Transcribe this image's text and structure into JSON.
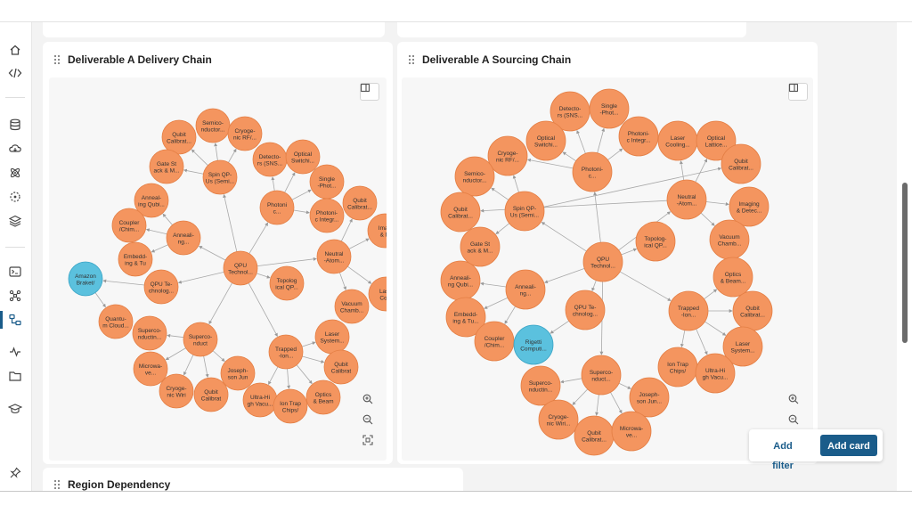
{
  "sidebar": {
    "icons": [
      "home-icon",
      "code-icon",
      "database-icon",
      "download-cloud-icon",
      "atom-icon",
      "scan-icon",
      "layers-icon",
      "terminal-icon",
      "network-graph-icon",
      "graph-view-icon",
      "activity-icon",
      "folder-icon",
      "learning-icon",
      "pin-icon"
    ],
    "active": "graph-view-icon"
  },
  "cards": {
    "delivery": {
      "title": "Deliverable A Delivery Chain"
    },
    "sourcing": {
      "title": "Deliverable A Sourcing Chain"
    },
    "region": {
      "title": "Region Dependency"
    }
  },
  "actions": {
    "add_filter": "Add filter",
    "add_card": "Add card"
  },
  "colors": {
    "node": "#f4955f",
    "node_stroke": "#e47f45",
    "highlight": "#5bc1de",
    "highlight_stroke": "#3aa5c6",
    "accent": "#1a5c8a"
  },
  "graphs": {
    "delivery": {
      "nodes": [
        {
          "id": "d_semi",
          "label": [
            "Semico-",
            "nductor..."
          ]
        },
        {
          "id": "d_qcal1",
          "label": [
            "Qubit",
            "Calibrat..."
          ]
        },
        {
          "id": "d_cryo",
          "label": [
            "Cryoge-",
            "nic RF/..."
          ]
        },
        {
          "id": "d_gate",
          "label": [
            "Gate St",
            "ack & M..."
          ]
        },
        {
          "id": "d_spin",
          "label": [
            "Spin QP-",
            "Us (Semi..."
          ]
        },
        {
          "id": "d_det",
          "label": [
            "Detecto-",
            "rs (SNS..."
          ]
        },
        {
          "id": "d_osw",
          "label": [
            "Optical",
            "Switchi..."
          ]
        },
        {
          "id": "d_ann1",
          "label": [
            "Anneal-",
            "ing Qubi..."
          ]
        },
        {
          "id": "d_single",
          "label": [
            "Single",
            "-Phot..."
          ]
        },
        {
          "id": "d_photc",
          "label": [
            "Photoni",
            "c..."
          ]
        },
        {
          "id": "d_qcal2",
          "label": [
            "Qubit",
            "Calibrat..."
          ]
        },
        {
          "id": "d_phint",
          "label": [
            "Photoni-",
            "c Integr..."
          ]
        },
        {
          "id": "d_coup",
          "label": [
            "Coupler",
            "/Chim..."
          ]
        },
        {
          "id": "d_ann2",
          "label": [
            "Anneali-",
            "ng..."
          ]
        },
        {
          "id": "d_img",
          "label": [
            "Imag",
            "& D"
          ]
        },
        {
          "id": "d_emb",
          "label": [
            "Embedd-",
            "ing & Tu"
          ]
        },
        {
          "id": "d_neut",
          "label": [
            "Neutral",
            "-Atom..."
          ]
        },
        {
          "id": "d_qpu",
          "label": [
            "QPU",
            "Technol..."
          ]
        },
        {
          "id": "d_amazon",
          "label": [
            "Amazon",
            "Braket/"
          ],
          "highlight": true
        },
        {
          "id": "d_qpute",
          "label": [
            "QPU Te-",
            "chnolog..."
          ]
        },
        {
          "id": "d_topo",
          "label": [
            "Topolog",
            "ical QP..."
          ]
        },
        {
          "id": "d_laser1",
          "label": [
            "Lase",
            "Cool"
          ]
        },
        {
          "id": "d_qcloud",
          "label": [
            "Quantu-",
            "m Cloud..."
          ]
        },
        {
          "id": "d_vac",
          "label": [
            "Vacuum",
            "Chamb..."
          ]
        },
        {
          "id": "d_sc1",
          "label": [
            "Superco-",
            "nductin..."
          ]
        },
        {
          "id": "d_sc2",
          "label": [
            "Superco-",
            "nduct"
          ]
        },
        {
          "id": "d_lasersys",
          "label": [
            "Laser",
            "System..."
          ]
        },
        {
          "id": "d_trap",
          "label": [
            "Trapped",
            "-Ion..."
          ]
        },
        {
          "id": "d_micro",
          "label": [
            "Microwa-",
            "ve..."
          ]
        },
        {
          "id": "d_qcal3",
          "label": [
            "Qubit",
            "Calibrat"
          ]
        },
        {
          "id": "d_jos",
          "label": [
            "Joseph-",
            "son Jun"
          ]
        },
        {
          "id": "d_cryo2",
          "label": [
            "Cryoge-",
            "nic Wiri"
          ]
        },
        {
          "id": "d_qcal4",
          "label": [
            "Qubit",
            "Calibrat"
          ]
        },
        {
          "id": "d_uhv",
          "label": [
            "Ultra-Hi",
            "gh Vacu..."
          ]
        },
        {
          "id": "d_optbeam",
          "label": [
            "Optics",
            "& Beam"
          ]
        },
        {
          "id": "d_iontrap",
          "label": [
            "Ion Trap",
            "Chips/"
          ]
        }
      ],
      "edges": [
        [
          "d_qpu",
          "d_spin"
        ],
        [
          "d_qpu",
          "d_photc"
        ],
        [
          "d_qpu",
          "d_neut"
        ],
        [
          "d_qpu",
          "d_ann2"
        ],
        [
          "d_qpu",
          "d_qpute"
        ],
        [
          "d_qpu",
          "d_topo"
        ],
        [
          "d_qpu",
          "d_sc2"
        ],
        [
          "d_qpu",
          "d_trap"
        ],
        [
          "d_qpute",
          "d_amazon"
        ],
        [
          "d_amazon",
          "d_qcloud"
        ],
        [
          "d_spin",
          "d_semi"
        ],
        [
          "d_spin",
          "d_qcal1"
        ],
        [
          "d_spin",
          "d_cryo"
        ],
        [
          "d_spin",
          "d_gate"
        ],
        [
          "d_photc",
          "d_det"
        ],
        [
          "d_photc",
          "d_osw"
        ],
        [
          "d_photc",
          "d_single"
        ],
        [
          "d_photc",
          "d_phint"
        ],
        [
          "d_ann2",
          "d_ann1"
        ],
        [
          "d_ann2",
          "d_coup"
        ],
        [
          "d_ann2",
          "d_emb"
        ],
        [
          "d_neut",
          "d_qcal2"
        ],
        [
          "d_neut",
          "d_img"
        ],
        [
          "d_neut",
          "d_laser1"
        ],
        [
          "d_neut",
          "d_vac"
        ],
        [
          "d_sc2",
          "d_sc1"
        ],
        [
          "d_sc2",
          "d_micro"
        ],
        [
          "d_sc2",
          "d_cryo2"
        ],
        [
          "d_sc2",
          "d_qcal4"
        ],
        [
          "d_sc2",
          "d_jos"
        ],
        [
          "d_trap",
          "d_lasersys"
        ],
        [
          "d_trap",
          "d_qcal3"
        ],
        [
          "d_trap",
          "d_optbeam"
        ],
        [
          "d_trap",
          "d_iontrap"
        ],
        [
          "d_trap",
          "d_uhv"
        ]
      ]
    },
    "sourcing": {
      "nodes": [
        {
          "id": "s_det",
          "label": [
            "Detecto-",
            "rs (SNS..."
          ]
        },
        {
          "id": "s_single",
          "label": [
            "Single",
            "-Phot..."
          ]
        },
        {
          "id": "s_osw",
          "label": [
            "Optical",
            "Switchi..."
          ]
        },
        {
          "id": "s_phint",
          "label": [
            "Photoni-",
            "c Integr..."
          ]
        },
        {
          "id": "s_laserc",
          "label": [
            "Laser",
            "Cooling..."
          ]
        },
        {
          "id": "s_optl",
          "label": [
            "Optical",
            "Lattice..."
          ]
        },
        {
          "id": "s_cryo",
          "label": [
            "Cryoge-",
            "nic RF/..."
          ]
        },
        {
          "id": "s_photc",
          "label": [
            "Photoni-",
            "c..."
          ]
        },
        {
          "id": "s_qcal1",
          "label": [
            "Qubit",
            "Calibrat..."
          ]
        },
        {
          "id": "s_semi",
          "label": [
            "Semico-",
            "nductor..."
          ]
        },
        {
          "id": "s_neut",
          "label": [
            "Neutral",
            "-Atom..."
          ]
        },
        {
          "id": "s_img",
          "label": [
            "Imaging",
            "& Detec..."
          ]
        },
        {
          "id": "s_qcal2",
          "label": [
            "Qubit",
            "Calibrat..."
          ]
        },
        {
          "id": "s_spin",
          "label": [
            "Spin QP-",
            "Us (Semi..."
          ]
        },
        {
          "id": "s_topo",
          "label": [
            "Topolog-",
            "ical QP..."
          ]
        },
        {
          "id": "s_vac",
          "label": [
            "Vacuum",
            "Chamb..."
          ]
        },
        {
          "id": "s_gate",
          "label": [
            "Gate St",
            "ack & M..."
          ]
        },
        {
          "id": "s_qpu",
          "label": [
            "QPU",
            "Technol..."
          ]
        },
        {
          "id": "s_ann1",
          "label": [
            "Anneali-",
            "ng Qubi..."
          ]
        },
        {
          "id": "s_ann2",
          "label": [
            "Anneali-",
            "ng..."
          ]
        },
        {
          "id": "s_optbeam",
          "label": [
            "Optics",
            "& Beam..."
          ]
        },
        {
          "id": "s_qcal3",
          "label": [
            "Qubit",
            "Calibrat..."
          ]
        },
        {
          "id": "s_emb",
          "label": [
            "Embedd-",
            "ing & Tu..."
          ]
        },
        {
          "id": "s_qpute",
          "label": [
            "QPU Te-",
            "chnolog..."
          ]
        },
        {
          "id": "s_trap",
          "label": [
            "Trapped",
            "-Ion..."
          ]
        },
        {
          "id": "s_coup",
          "label": [
            "Coupler",
            "/Chim..."
          ]
        },
        {
          "id": "s_rigetti",
          "label": [
            "Rigetti",
            "Computi..."
          ],
          "highlight": true
        },
        {
          "id": "s_lasersys",
          "label": [
            "Laser",
            "System..."
          ]
        },
        {
          "id": "s_iontrap",
          "label": [
            "Ion Trap",
            "Chips/"
          ]
        },
        {
          "id": "s_uhv",
          "label": [
            "Ultra-Hi",
            "gh Vacu..."
          ]
        },
        {
          "id": "s_sc2",
          "label": [
            "Superco-",
            "nduct..."
          ]
        },
        {
          "id": "s_sc1",
          "label": [
            "Superco-",
            "nductin..."
          ]
        },
        {
          "id": "s_jos",
          "label": [
            "Joseph-",
            "son Jun..."
          ]
        },
        {
          "id": "s_cryo2",
          "label": [
            "Cryoge-",
            "nic Wiri..."
          ]
        },
        {
          "id": "s_qcal4",
          "label": [
            "Qubit",
            "Calibrat..."
          ]
        },
        {
          "id": "s_micro",
          "label": [
            "Microwa-",
            "ve..."
          ]
        }
      ],
      "edges": [
        [
          "s_qpu",
          "s_photc"
        ],
        [
          "s_qpu",
          "s_spin"
        ],
        [
          "s_qpu",
          "s_topo"
        ],
        [
          "s_qpu",
          "s_neut"
        ],
        [
          "s_qpu",
          "s_ann2"
        ],
        [
          "s_qpu",
          "s_qpute"
        ],
        [
          "s_qpu",
          "s_trap"
        ],
        [
          "s_qpu",
          "s_sc2"
        ],
        [
          "s_qpute",
          "s_rigetti"
        ],
        [
          "s_photc",
          "s_det"
        ],
        [
          "s_photc",
          "s_single"
        ],
        [
          "s_photc",
          "s_osw"
        ],
        [
          "s_photc",
          "s_phint"
        ],
        [
          "s_photc",
          "s_cryo"
        ],
        [
          "s_spin",
          "s_semi"
        ],
        [
          "s_spin",
          "s_qcal1"
        ],
        [
          "s_spin",
          "s_gate"
        ],
        [
          "s_spin",
          "s_cryo"
        ],
        [
          "s_neut",
          "s_laserc"
        ],
        [
          "s_neut",
          "s_optl"
        ],
        [
          "s_neut",
          "s_img"
        ],
        [
          "s_neut",
          "s_qcal2"
        ],
        [
          "s_neut",
          "s_vac"
        ],
        [
          "s_ann2",
          "s_ann1"
        ],
        [
          "s_ann2",
          "s_emb"
        ],
        [
          "s_ann2",
          "s_coup"
        ],
        [
          "s_trap",
          "s_optbeam"
        ],
        [
          "s_trap",
          "s_qcal3"
        ],
        [
          "s_trap",
          "s_lasersys"
        ],
        [
          "s_trap",
          "s_uhv"
        ],
        [
          "s_trap",
          "s_iontrap"
        ],
        [
          "s_sc2",
          "s_sc1"
        ],
        [
          "s_sc2",
          "s_jos"
        ],
        [
          "s_sc2",
          "s_cryo2"
        ],
        [
          "s_sc2",
          "s_qcal4"
        ],
        [
          "s_sc2",
          "s_micro"
        ]
      ]
    }
  }
}
